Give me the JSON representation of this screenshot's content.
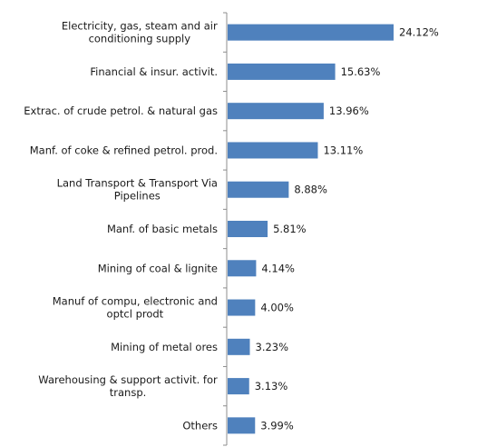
{
  "chart_data": {
    "type": "bar",
    "orientation": "horizontal",
    "title": "",
    "xlabel": "",
    "ylabel": "",
    "categories": [
      [
        "Electricity, gas, steam and air",
        "conditioning supply"
      ],
      [
        "Financial & insur. activit."
      ],
      [
        "Extrac. of crude petrol. & natural gas"
      ],
      [
        "Manf. of coke & refined petrol. prod."
      ],
      [
        "Land Transport & Transport Via",
        "Pipelines"
      ],
      [
        "Manf. of basic metals"
      ],
      [
        "Mining of coal & lignite"
      ],
      [
        "Manuf of compu, electronic and",
        "optcl prodt"
      ],
      [
        "Mining of metal ores"
      ],
      [
        "Warehousing & support activit. for",
        "transp."
      ],
      [
        "Others"
      ]
    ],
    "values": [
      24.12,
      15.63,
      13.96,
      13.11,
      8.88,
      5.81,
      4.14,
      4.0,
      3.23,
      3.13,
      3.99
    ],
    "value_labels": [
      "24.12%",
      "15.63%",
      "13.96%",
      "13.11%",
      "8.88%",
      "5.81%",
      "4.14%",
      "4.00%",
      "3.23%",
      "3.13%",
      "3.99%"
    ],
    "xlim": [
      0,
      30
    ],
    "grid": false,
    "legend": "none",
    "bar_color": "#4F81BD"
  }
}
